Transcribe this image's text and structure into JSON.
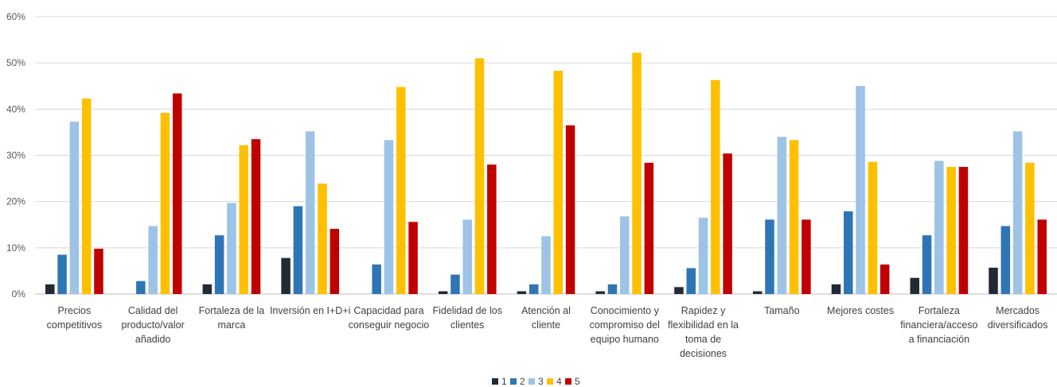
{
  "chart_data": {
    "type": "bar",
    "y_ticks": [
      "0%",
      "10%",
      "20%",
      "30%",
      "40%",
      "50%",
      "60%"
    ],
    "ylim": [
      0,
      60
    ],
    "grid": true,
    "legend_position": "bottom",
    "categories": [
      [
        "Precios",
        "competitivos"
      ],
      [
        "Calidad del",
        "producto/valor",
        "añadido"
      ],
      [
        "Fortaleza de la",
        "marca"
      ],
      [
        "Inversión en I+D+i"
      ],
      [
        "Capacidad para",
        "conseguir negocio"
      ],
      [
        "Fidelidad de los",
        "clientes"
      ],
      [
        "Atención al",
        "cliente"
      ],
      [
        "Conocimiento y",
        "compromiso del",
        "equipo humano"
      ],
      [
        "Rapidez y",
        "flexibilidad en la",
        "toma de",
        "decisiones"
      ],
      [
        "Tamaño"
      ],
      [
        "Mejores costes"
      ],
      [
        "Fortaleza",
        "financiera/acceso",
        "a financiación"
      ],
      [
        "Mercados",
        "diversificados"
      ]
    ],
    "series": [
      {
        "name": "1",
        "color": "#222a35",
        "values": [
          2.1,
          0,
          2.1,
          7.8,
          0,
          0.6,
          0.6,
          0.6,
          1.5,
          0.6,
          2.1,
          3.5,
          5.7
        ]
      },
      {
        "name": "2",
        "color": "#2e75b6",
        "values": [
          8.5,
          2.8,
          12.7,
          19.0,
          6.4,
          4.2,
          2.1,
          2.1,
          5.6,
          16.1,
          17.9,
          12.7,
          14.7
        ]
      },
      {
        "name": "3",
        "color": "#9dc3e6",
        "values": [
          37.3,
          14.7,
          19.7,
          35.2,
          33.3,
          16.1,
          12.5,
          16.8,
          16.5,
          34.0,
          45.0,
          28.8,
          35.2
        ]
      },
      {
        "name": "4",
        "color": "#ffc000",
        "values": [
          42.3,
          39.2,
          32.2,
          23.9,
          44.8,
          51.0,
          48.3,
          52.2,
          46.3,
          33.3,
          28.6,
          27.5,
          28.4
        ]
      },
      {
        "name": "5",
        "color": "#c00000",
        "values": [
          9.8,
          43.4,
          33.5,
          14.1,
          15.6,
          28.0,
          36.5,
          28.4,
          30.4,
          16.1,
          6.4,
          27.5,
          16.1
        ]
      }
    ]
  }
}
